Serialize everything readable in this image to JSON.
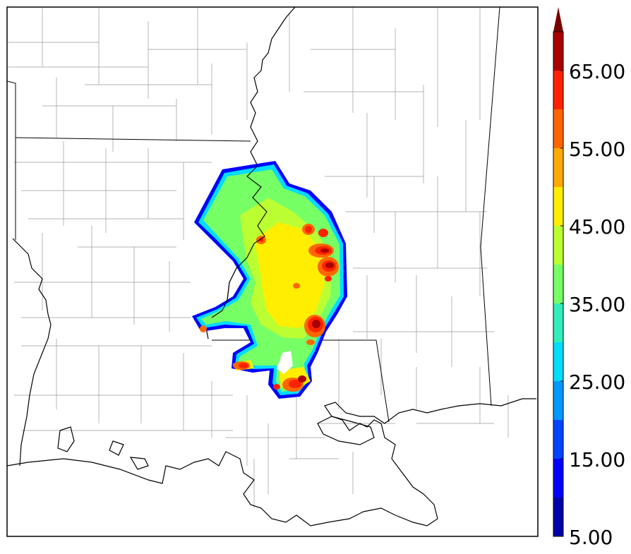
{
  "colorbar": {
    "tick_labels": [
      "5.00",
      "15.00",
      "25.00",
      "35.00",
      "45.00",
      "55.00",
      "65.00"
    ],
    "tick_values": [
      5,
      15,
      25,
      35,
      45,
      55,
      65
    ],
    "range": [
      5,
      70
    ],
    "extend": "max",
    "bin_width": 5,
    "bins": [
      {
        "from": 5,
        "color": "#0000aa"
      },
      {
        "from": 10,
        "color": "#0000ff"
      },
      {
        "from": 15,
        "color": "#0044ff"
      },
      {
        "from": 20,
        "color": "#0099ff"
      },
      {
        "from": 25,
        "color": "#00ddff"
      },
      {
        "from": 30,
        "color": "#33eebb"
      },
      {
        "from": 35,
        "color": "#77ff66"
      },
      {
        "from": 40,
        "color": "#bbff33"
      },
      {
        "from": 45,
        "color": "#ffee00"
      },
      {
        "from": 50,
        "color": "#ffaa00"
      },
      {
        "from": 55,
        "color": "#ff6600"
      },
      {
        "from": 60,
        "color": "#ff2200"
      },
      {
        "from": 65,
        "color": "#aa0000"
      }
    ],
    "extend_color": "#770000"
  },
  "map": {
    "coastline_color": "#000000",
    "county_color": "#9a9a9a",
    "river_color": "#000000",
    "field_colors": {
      "edge": "#0000ff",
      "outer": "#00ddff",
      "base": "#77ff66",
      "mid": "#bbff33",
      "high": "#ffee00",
      "core1": "#ff6600",
      "core2": "#ff2200",
      "core3": "#aa0000"
    }
  }
}
